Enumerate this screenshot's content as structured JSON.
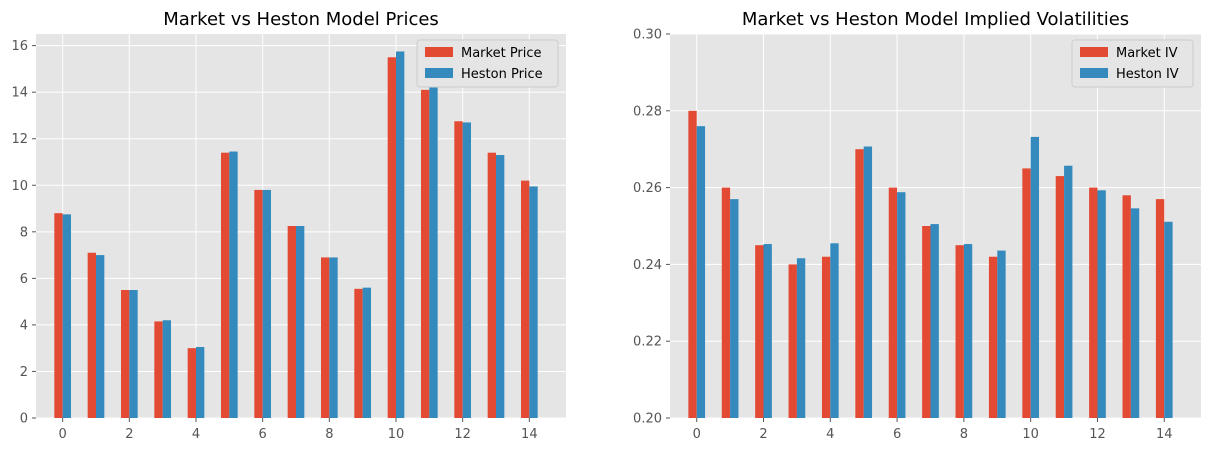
{
  "chart_data": [
    {
      "type": "bar",
      "title": "Market vs Heston Model Prices",
      "xlabel": "",
      "ylabel": "",
      "x": [
        0,
        1,
        2,
        3,
        4,
        5,
        6,
        7,
        8,
        9,
        10,
        11,
        12,
        13,
        14
      ],
      "xticks": [
        0,
        2,
        4,
        6,
        8,
        10,
        12,
        14
      ],
      "yticks": [
        0,
        2,
        4,
        6,
        8,
        10,
        12,
        14,
        16
      ],
      "ylim": [
        0,
        16.5
      ],
      "xlim": [
        -0.8,
        15.1
      ],
      "grid": true,
      "legend_position": "top-right",
      "series": [
        {
          "name": "Market Price",
          "color": "#E24A33",
          "values": [
            8.8,
            7.1,
            5.5,
            4.15,
            3.0,
            11.4,
            9.8,
            8.25,
            6.9,
            5.55,
            15.5,
            14.1,
            12.75,
            11.4,
            10.2
          ]
        },
        {
          "name": "Heston Price",
          "color": "#348ABD",
          "values": [
            8.75,
            7.0,
            5.5,
            4.2,
            3.05,
            11.45,
            9.8,
            8.25,
            6.9,
            5.6,
            15.75,
            14.2,
            12.7,
            11.3,
            9.95
          ]
        }
      ]
    },
    {
      "type": "bar",
      "title": "Market vs Heston Model Implied Volatilities",
      "xlabel": "",
      "ylabel": "",
      "x": [
        0,
        1,
        2,
        3,
        4,
        5,
        6,
        7,
        8,
        9,
        10,
        11,
        12,
        13,
        14
      ],
      "xticks": [
        0,
        2,
        4,
        6,
        8,
        10,
        12,
        14
      ],
      "yticks": [
        0.2,
        0.22,
        0.24,
        0.26,
        0.28,
        0.3
      ],
      "ylim": [
        0.2,
        0.3
      ],
      "xlim": [
        -0.8,
        15.1
      ],
      "grid": true,
      "legend_position": "top-right",
      "series": [
        {
          "name": "Market IV",
          "color": "#E24A33",
          "values": [
            0.28,
            0.26,
            0.245,
            0.24,
            0.242,
            0.27,
            0.26,
            0.25,
            0.245,
            0.242,
            0.265,
            0.263,
            0.26,
            0.258,
            0.257
          ]
        },
        {
          "name": "Heston IV",
          "color": "#348ABD",
          "values": [
            0.276,
            0.257,
            0.2453,
            0.2416,
            0.2455,
            0.2707,
            0.2588,
            0.2505,
            0.2453,
            0.2436,
            0.2732,
            0.2657,
            0.2593,
            0.2546,
            0.2511
          ]
        }
      ]
    }
  ]
}
